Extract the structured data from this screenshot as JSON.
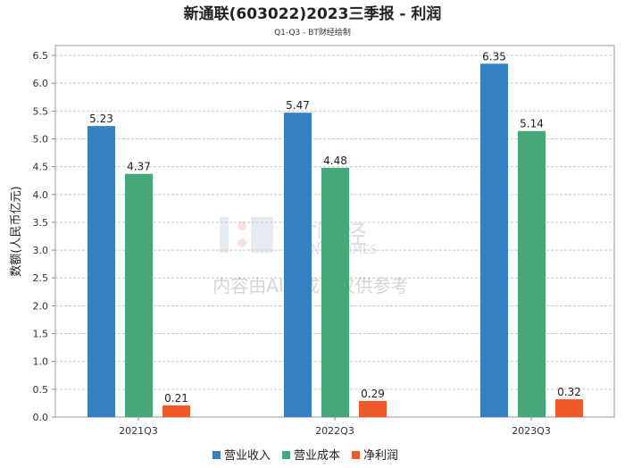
{
  "chart_data": {
    "type": "bar",
    "title": "新通联(603022)2023三季报 - 利润",
    "subtitle": "Q1-Q3 - BT财经绘制",
    "ylabel": "数额(人民币亿元)",
    "xlabel": "",
    "ylim": [
      0,
      6.5
    ],
    "yticks": [
      "0.0",
      "0.5",
      "1.0",
      "1.5",
      "2.0",
      "2.5",
      "3.0",
      "3.5",
      "4.0",
      "4.5",
      "5.0",
      "5.5",
      "6.0",
      "6.5"
    ],
    "categories": [
      "2021Q3",
      "2022Q3",
      "2023Q3"
    ],
    "series": [
      {
        "name": "营业收入",
        "color": "#3480c0",
        "values": [
          5.23,
          5.47,
          6.35
        ],
        "labels": [
          "5.23",
          "5.47",
          "6.35"
        ]
      },
      {
        "name": "营业成本",
        "color": "#45a878",
        "values": [
          4.37,
          4.48,
          5.14
        ],
        "labels": [
          "4.37",
          "4.48",
          "5.14"
        ]
      },
      {
        "name": "净利润",
        "color": "#ee5a2a",
        "values": [
          0.21,
          0.29,
          0.32
        ],
        "labels": [
          "0.21",
          "0.29",
          "0.32"
        ]
      }
    ],
    "grid": true,
    "legend": "bottom"
  },
  "watermark": {
    "brand": "BT财经",
    "brand_en": "BUSINESSTIMES",
    "notice": "内容由AI生成，仅供参考"
  }
}
